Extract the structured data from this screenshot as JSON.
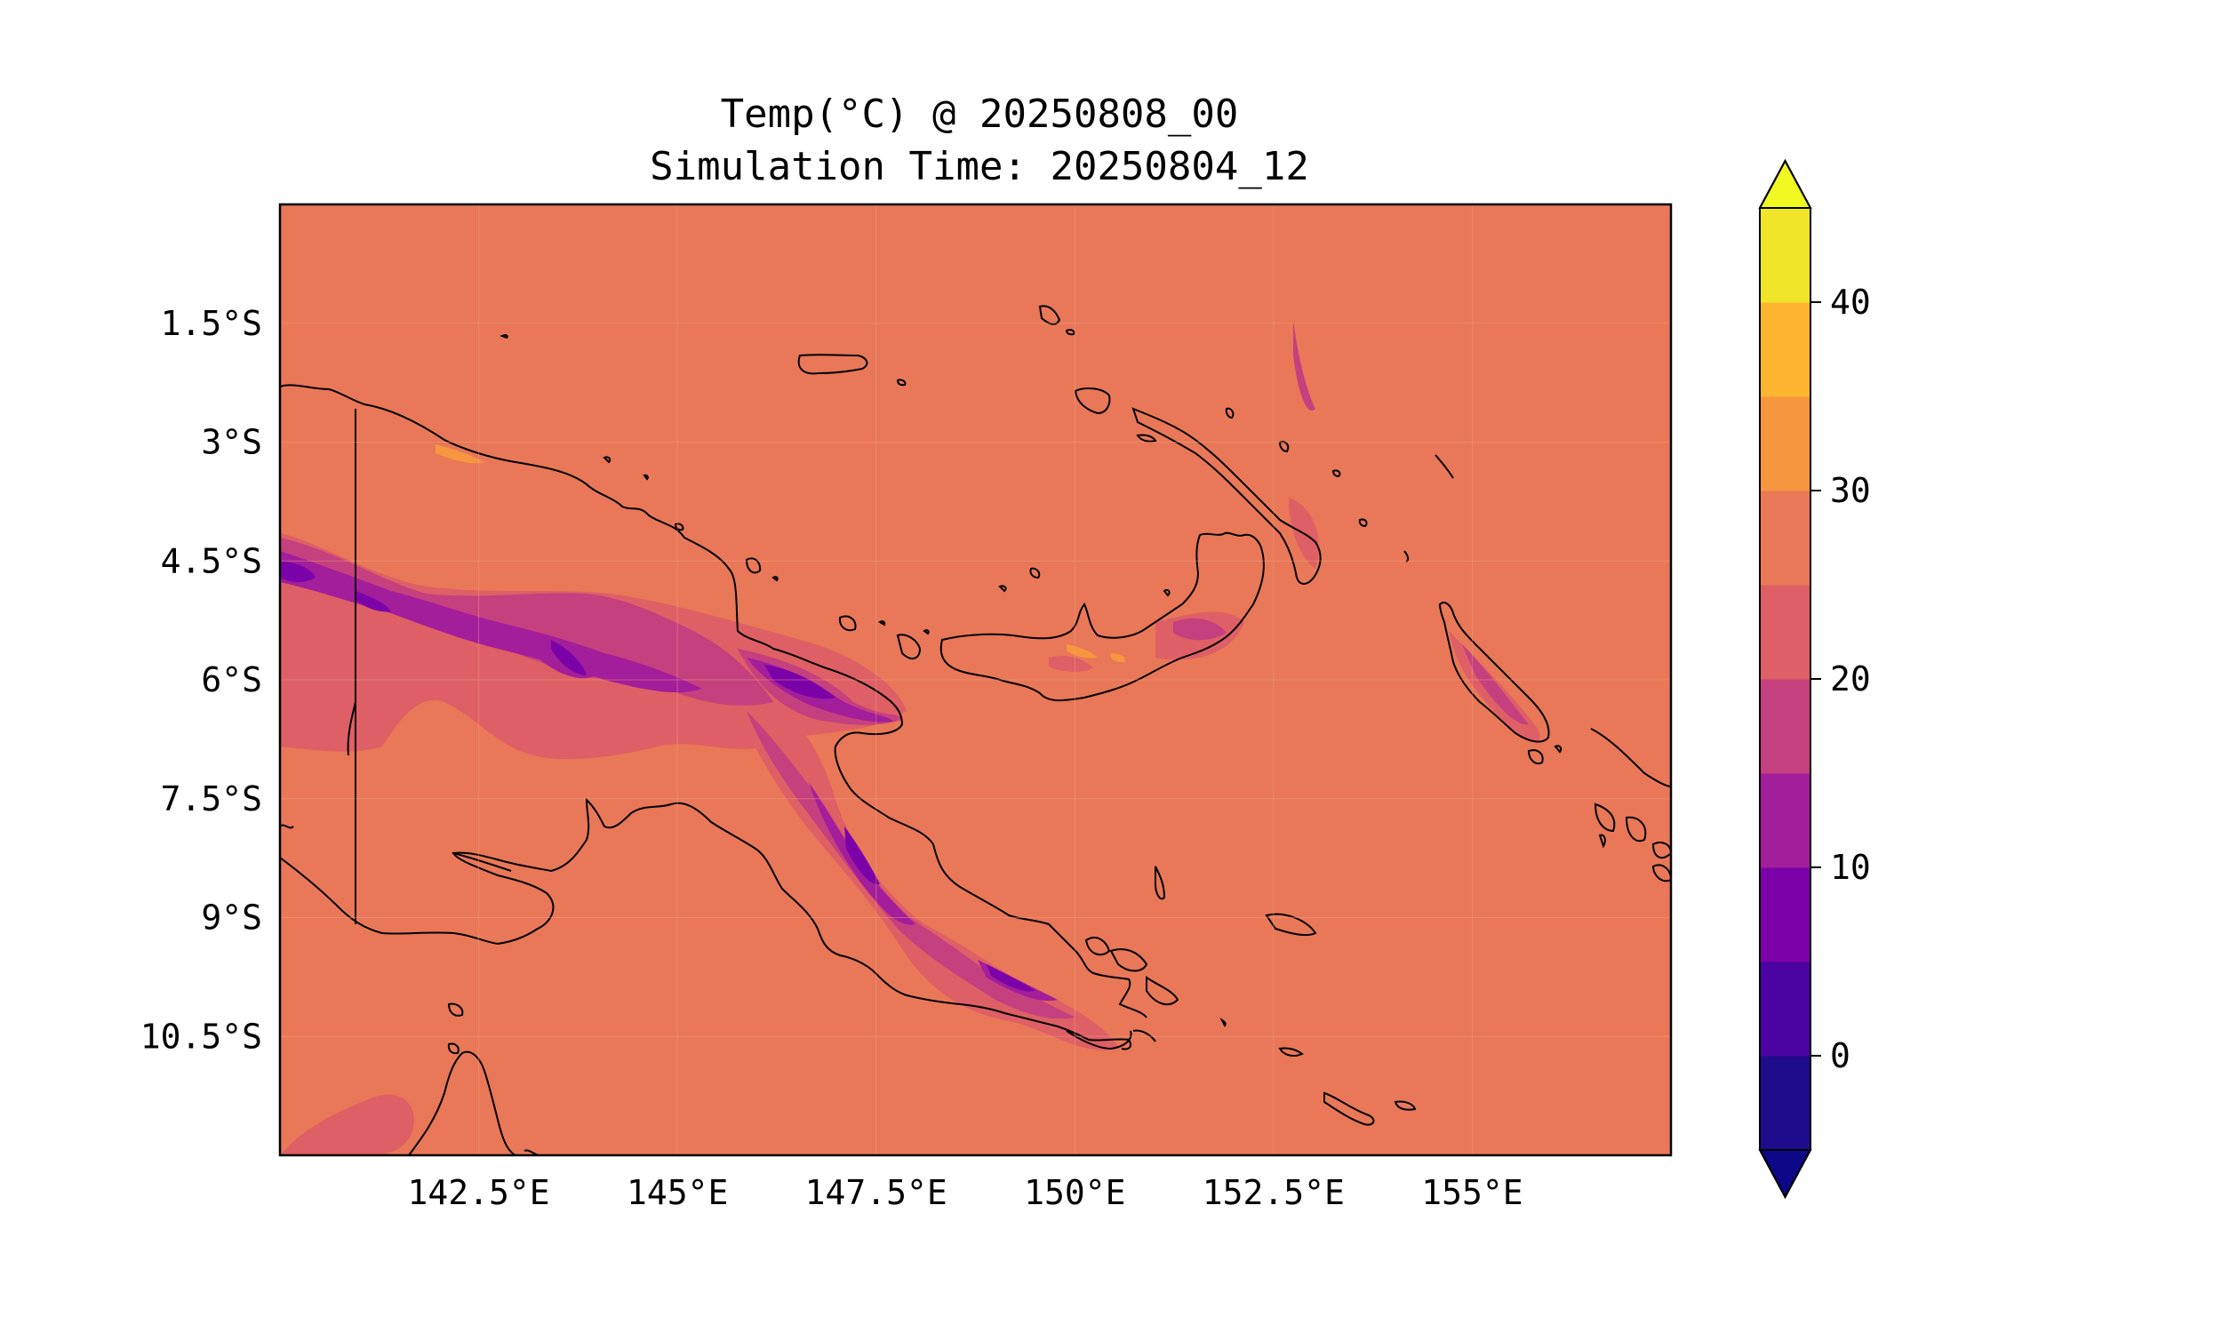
{
  "title": {
    "line1": "Temp(°C) @ 20250808_00",
    "line2": "Simulation Time: 20250804_12"
  },
  "map": {
    "type": "filled-contour",
    "variable": "Temp(°C)",
    "valid_time": "20250808_00",
    "simulation_time": "20250804_12",
    "extent": {
      "lon": [
        140,
        157.5
      ],
      "lat": [
        -12.0,
        0.0
      ]
    },
    "lon_ticks": [
      "142.5°E",
      "145°E",
      "147.5°E",
      "150°E",
      "152.5°E",
      "155°E"
    ],
    "lon_tick_values": [
      142.5,
      145,
      147.5,
      150,
      152.5,
      155
    ],
    "lat_ticks": [
      "1.5°S",
      "3°S",
      "4.5°S",
      "6°S",
      "7.5°S",
      "9°S",
      "10.5°S"
    ],
    "lat_tick_values": [
      -1.5,
      -3,
      -4.5,
      -6,
      -7.5,
      -9,
      -10.5
    ],
    "background_color": "#e87858",
    "coastline_color": "#000000"
  },
  "colorbar": {
    "colormap": "plasma",
    "levels": [
      -5,
      0,
      5,
      10,
      15,
      20,
      25,
      30,
      35,
      40,
      45
    ],
    "colors": [
      "#1f0c8c",
      "#4b03a1",
      "#7b02a8",
      "#a31e9a",
      "#c5407e",
      "#de5f65",
      "#e87858",
      "#f6963f",
      "#fdb42f",
      "#f0e528"
    ],
    "extend_low_color": "#0d0887",
    "extend_high_color": "#f0f921",
    "tick_labels": [
      "0",
      "10",
      "20",
      "30",
      "40"
    ],
    "tick_values": [
      0,
      10,
      20,
      30,
      40
    ]
  }
}
